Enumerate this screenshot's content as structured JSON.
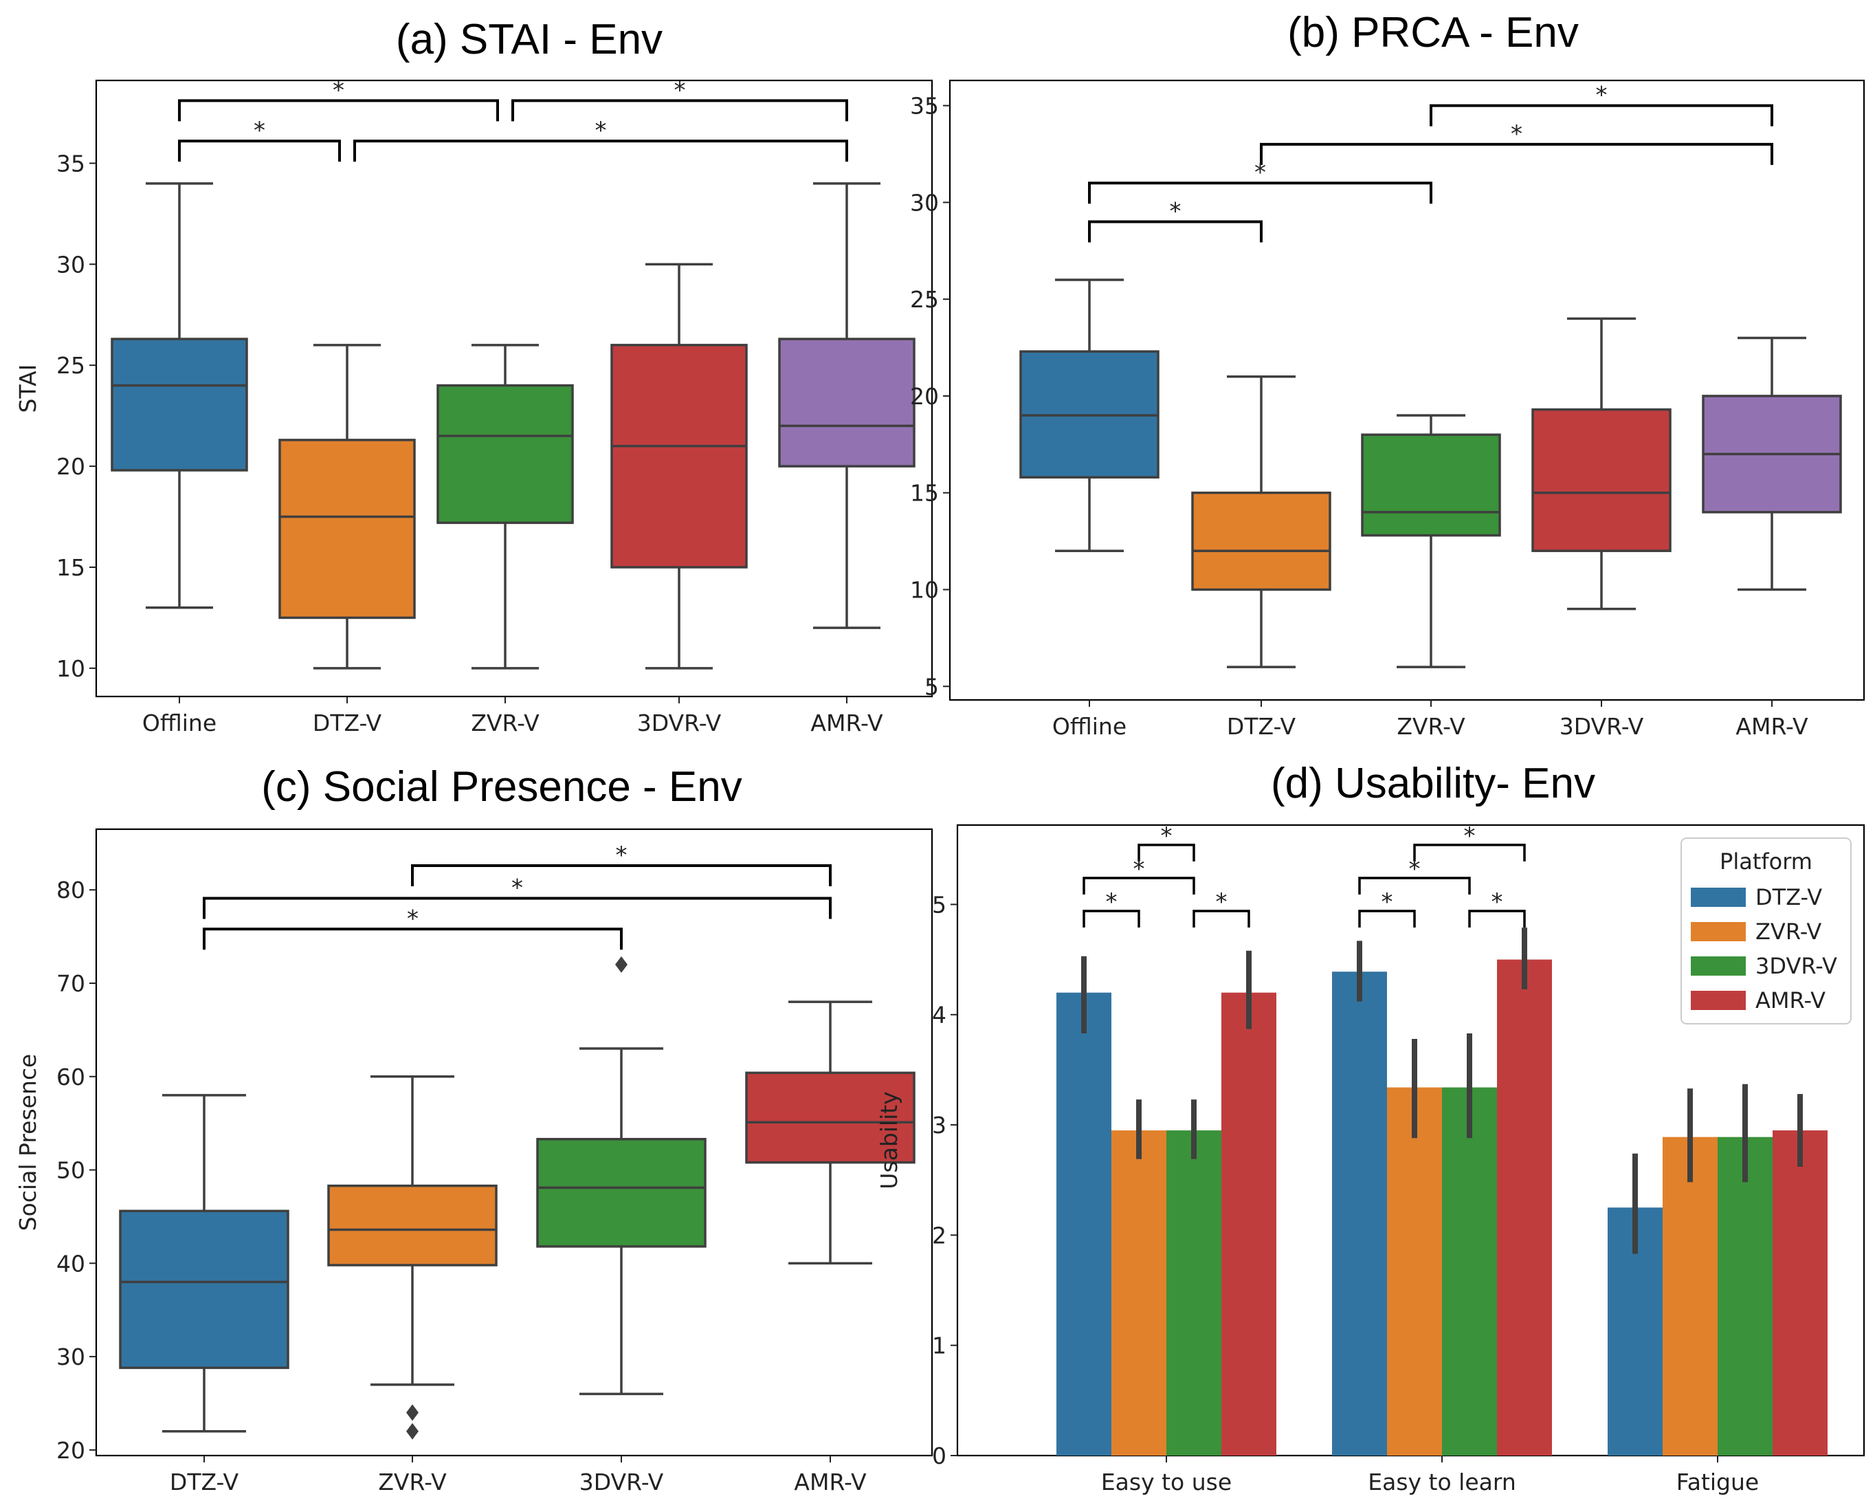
{
  "chart_data": [
    {
      "id": "a",
      "type": "box",
      "title": "(a) STAI - Env",
      "ylabel": "STAI",
      "xlabel": "",
      "ylim": [
        8.6,
        39.1
      ],
      "yticks": [
        10,
        15,
        20,
        25,
        30,
        35
      ],
      "categories": [
        "Offline",
        "DTZ-V",
        "ZVR-V",
        "3DVR-V",
        "AMR-V"
      ],
      "colors": [
        "#3274a1",
        "#e1812c",
        "#3a923a",
        "#c03d3e",
        "#9372b2"
      ],
      "boxes": [
        {
          "whislo": 13,
          "q1": 19.8,
          "med": 24,
          "q3": 26.3,
          "whishi": 34,
          "fliers": []
        },
        {
          "whislo": 10,
          "q1": 12.5,
          "med": 17.5,
          "q3": 21.3,
          "whishi": 26,
          "fliers": []
        },
        {
          "whislo": 10,
          "q1": 17.2,
          "med": 21.5,
          "q3": 24,
          "whishi": 26,
          "fliers": []
        },
        {
          "whislo": 10,
          "q1": 15,
          "med": 21,
          "q3": 26,
          "whishi": 30,
          "fliers": []
        },
        {
          "whislo": 12,
          "q1": 20,
          "med": 22,
          "q3": 26.3,
          "whishi": 34,
          "fliers": []
        }
      ],
      "brackets": [
        {
          "from": 0,
          "to": 2,
          "level": 38.1,
          "label": "*"
        },
        {
          "from": 2,
          "to": 4,
          "level": 38.1,
          "label": "*"
        },
        {
          "from": 0,
          "to": 1,
          "level": 36.1,
          "label": "*"
        },
        {
          "from": 1,
          "to": 4,
          "level": 36.1,
          "label": "*"
        }
      ]
    },
    {
      "id": "b",
      "type": "box",
      "title": "(b) PRCA - Env",
      "ylabel": "",
      "xlabel": "",
      "ylim": [
        4.3,
        36.3
      ],
      "yticks": [
        5,
        10,
        15,
        20,
        25,
        30,
        35
      ],
      "categories": [
        "Offline",
        "DTZ-V",
        "ZVR-V",
        "3DVR-V",
        "AMR-V"
      ],
      "colors": [
        "#3274a1",
        "#e1812c",
        "#3a923a",
        "#c03d3e",
        "#9372b2"
      ],
      "boxes": [
        {
          "whislo": 12,
          "q1": 15.8,
          "med": 19,
          "q3": 22.3,
          "whishi": 26,
          "fliers": []
        },
        {
          "whislo": 6,
          "q1": 10,
          "med": 12,
          "q3": 15,
          "whishi": 21,
          "fliers": []
        },
        {
          "whislo": 6,
          "q1": 12.8,
          "med": 14,
          "q3": 18,
          "whishi": 19,
          "fliers": []
        },
        {
          "whislo": 9,
          "q1": 12,
          "med": 15,
          "q3": 19.3,
          "whishi": 24,
          "fliers": []
        },
        {
          "whislo": 10,
          "q1": 14,
          "med": 17,
          "q3": 20,
          "whishi": 23,
          "fliers": []
        }
      ],
      "brackets": [
        {
          "from": 2,
          "to": 4,
          "level": 35,
          "label": "*"
        },
        {
          "from": 1,
          "to": 4,
          "level": 33,
          "label": "*"
        },
        {
          "from": 0,
          "to": 2,
          "level": 31,
          "label": "*"
        },
        {
          "from": 0,
          "to": 1,
          "level": 29,
          "label": "*"
        }
      ]
    },
    {
      "id": "c",
      "type": "box",
      "title": "(c) Social Presence - Env",
      "ylabel": "Social Presence",
      "xlabel": "",
      "ylim": [
        19.4,
        86.5
      ],
      "yticks": [
        20,
        30,
        40,
        50,
        60,
        70,
        80
      ],
      "categories": [
        "DTZ-V",
        "ZVR-V",
        "3DVR-V",
        "AMR-V"
      ],
      "colors": [
        "#3274a1",
        "#e1812c",
        "#3a923a",
        "#c03d3e"
      ],
      "boxes": [
        {
          "whislo": 22,
          "q1": 28.8,
          "med": 38,
          "q3": 45.6,
          "whishi": 58,
          "fliers": []
        },
        {
          "whislo": 27,
          "q1": 39.8,
          "med": 43.6,
          "q3": 48.3,
          "whishi": 60,
          "fliers": [
            22,
            24
          ]
        },
        {
          "whislo": 26,
          "q1": 41.8,
          "med": 48.1,
          "q3": 53.3,
          "whishi": 63,
          "fliers": [
            72
          ]
        },
        {
          "whislo": 40,
          "q1": 50.8,
          "med": 55.1,
          "q3": 60.4,
          "whishi": 68,
          "fliers": []
        }
      ],
      "brackets": [
        {
          "from": 1,
          "to": 3,
          "level": 82.6,
          "label": "*"
        },
        {
          "from": 0,
          "to": 3,
          "level": 79.1,
          "label": "*"
        },
        {
          "from": 0,
          "to": 2,
          "level": 75.8,
          "label": "*"
        }
      ]
    },
    {
      "id": "d",
      "type": "bar",
      "title": "(d) Usability- Env",
      "ylabel": "Usability",
      "xlabel": "",
      "ylim": [
        0,
        5.72
      ],
      "yticks": [
        0,
        1,
        2,
        3,
        4,
        5
      ],
      "categories": [
        "Easy to use",
        "Easy to learn",
        "Fatigue"
      ],
      "legend": {
        "title": "Platform",
        "position": "top-right"
      },
      "series": [
        {
          "name": "DTZ-V",
          "color": "#3274a1",
          "values": [
            4.2,
            4.39,
            2.25
          ],
          "err_lo": [
            3.83,
            4.12,
            1.83
          ],
          "err_hi": [
            4.53,
            4.67,
            2.74
          ]
        },
        {
          "name": "ZVR-V",
          "color": "#e1812c",
          "values": [
            2.95,
            3.34,
            2.89
          ],
          "err_lo": [
            2.69,
            2.88,
            2.48
          ],
          "err_hi": [
            3.23,
            3.78,
            3.33
          ]
        },
        {
          "name": "3DVR-V",
          "color": "#3a923a",
          "values": [
            2.95,
            3.34,
            2.89
          ],
          "err_lo": [
            2.69,
            2.88,
            2.48
          ],
          "err_hi": [
            3.23,
            3.83,
            3.37
          ]
        },
        {
          "name": "AMR-V",
          "color": "#c03d3e",
          "values": [
            4.2,
            4.5,
            2.95
          ],
          "err_lo": [
            3.87,
            4.23,
            2.62
          ],
          "err_hi": [
            4.58,
            4.79,
            3.28
          ]
        }
      ],
      "brackets": [
        {
          "group": 0,
          "from": 1,
          "to": 2,
          "level": 5.54,
          "label": "*"
        },
        {
          "group": 0,
          "from": 0,
          "to": 2,
          "level": 5.24,
          "label": "*"
        },
        {
          "group": 0,
          "from": 0,
          "to": 1,
          "level": 4.94,
          "label": "*"
        },
        {
          "group": 0,
          "from": 2,
          "to": 3,
          "level": 4.94,
          "label": "*"
        },
        {
          "group": 1,
          "from": 1,
          "to": 3,
          "level": 5.54,
          "label": "*"
        },
        {
          "group": 1,
          "from": 0,
          "to": 2,
          "level": 5.24,
          "label": "*"
        },
        {
          "group": 1,
          "from": 0,
          "to": 1,
          "level": 4.94,
          "label": "*"
        },
        {
          "group": 1,
          "from": 2,
          "to": 3,
          "level": 4.94,
          "label": "*"
        }
      ]
    }
  ]
}
